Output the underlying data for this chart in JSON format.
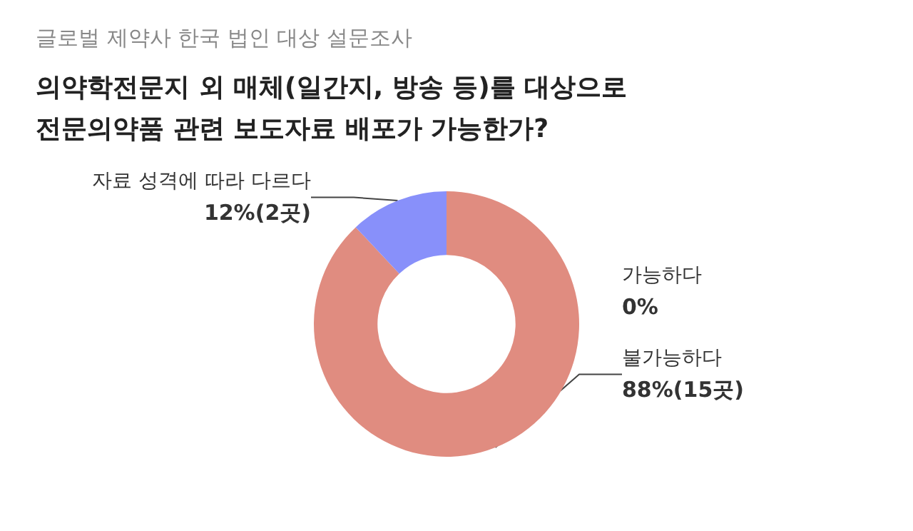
{
  "chart_data": {
    "type": "donut",
    "subtitle": "글로벌 제약사 한국 법인 대상 설문조사",
    "title": "의약학전문지 외 매체(일간지, 방송 등)를 대상으로\n전문의약품 관련 보도자료 배포가 가능한가?",
    "categories": [
      "불가능하다",
      "자료 성격에 따라 다르다",
      "가능하다"
    ],
    "values": [
      88,
      12,
      0
    ],
    "colors": [
      "#e08c80",
      "#8890fa",
      null
    ],
    "value_labels": [
      "88%(15곳)",
      "12%(2곳)",
      "0%"
    ],
    "legend": false
  }
}
